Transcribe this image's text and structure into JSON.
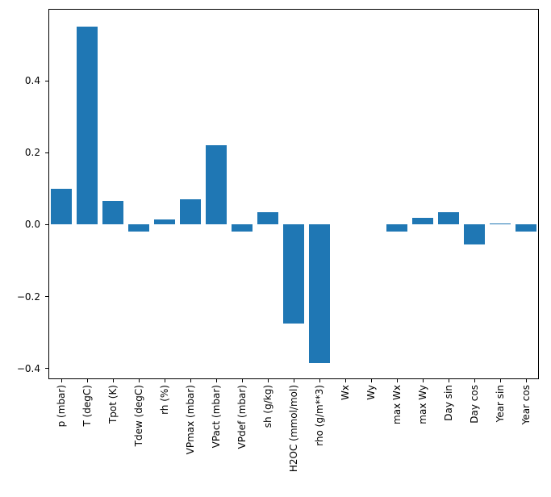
{
  "figure": {
    "background": "#ffffff",
    "axis_color": "#000000",
    "bar_color": "#1f77b4"
  },
  "chart_data": {
    "type": "bar",
    "title": "",
    "xlabel": "",
    "ylabel": "",
    "categories": [
      "p (mbar)",
      "T (degC)",
      "Tpot (K)",
      "Tdew (degC)",
      "rh (%)",
      "VPmax (mbar)",
      "VPact (mbar)",
      "VPdef (mbar)",
      "sh (g/kg)",
      "H2OC (mmol/mol)",
      "rho (g/m**3)",
      "Wx",
      "Wy",
      "max Wx",
      "max Wy",
      "Day sin",
      "Day cos",
      "Year sin",
      "Year cos"
    ],
    "values": [
      0.1,
      0.55,
      0.065,
      -0.02,
      0.015,
      0.07,
      0.22,
      -0.02,
      0.035,
      -0.275,
      -0.385,
      0.0,
      0.0,
      -0.02,
      0.018,
      0.035,
      -0.055,
      0.004,
      -0.02
    ],
    "ylim": [
      -0.43,
      0.6
    ],
    "yticks": [
      -0.4,
      -0.2,
      0.0,
      0.2,
      0.4
    ],
    "grid": false,
    "legend": null,
    "x_tick_rotation": 90,
    "bar_width_fraction": 0.8
  }
}
